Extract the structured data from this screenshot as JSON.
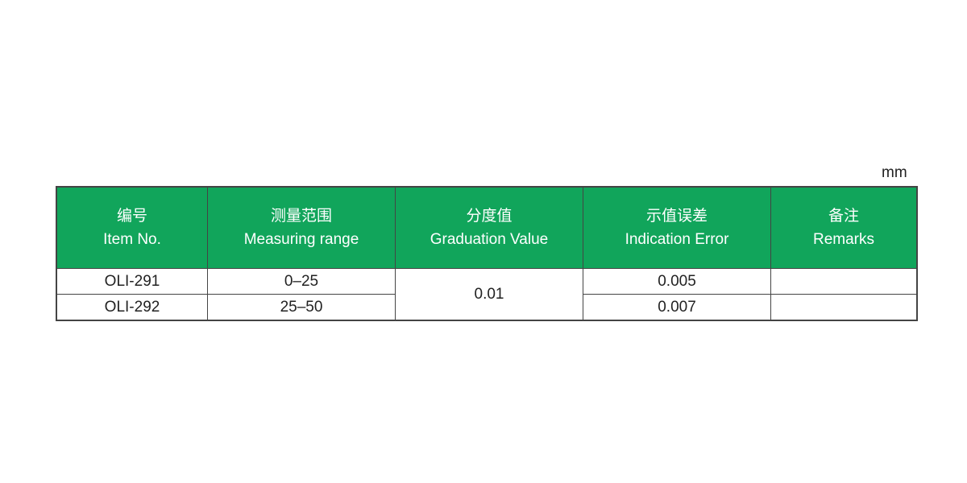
{
  "unit": "mm",
  "headers": [
    {
      "zh": "编号",
      "en": "Item No."
    },
    {
      "zh": "测量范围",
      "en": "Measuring range"
    },
    {
      "zh": "分度值",
      "en": "Graduation Value"
    },
    {
      "zh": "示值误差",
      "en": "Indication Error"
    },
    {
      "zh": "备注",
      "en": "Remarks"
    }
  ],
  "rows": [
    {
      "item": "OLI-291",
      "range": "0–25",
      "error": "0.005",
      "remarks": ""
    },
    {
      "item": "OLI-292",
      "range": "25–50",
      "error": "0.007",
      "remarks": ""
    }
  ],
  "graduation": "0.01",
  "colors": {
    "header_bg": "#11a55b"
  }
}
